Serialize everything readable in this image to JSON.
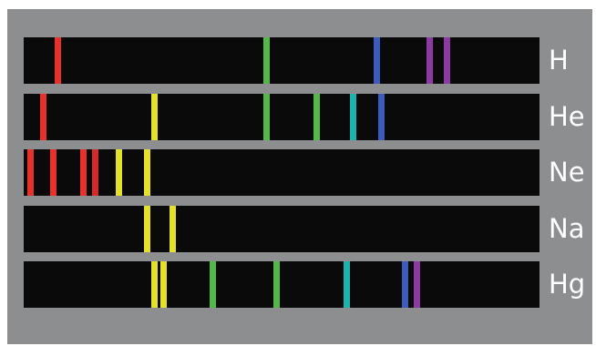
{
  "spectra": [
    {
      "element": "H",
      "lines": [
        {
          "pos": 0.067,
          "color": "#e8312a"
        },
        {
          "pos": 0.47,
          "color": "#54b848"
        },
        {
          "pos": 0.684,
          "color": "#3b5bbf"
        },
        {
          "pos": 0.787,
          "color": "#8e3aa4"
        },
        {
          "pos": 0.82,
          "color": "#8e3aa4"
        }
      ]
    },
    {
      "element": "He",
      "lines": [
        {
          "pos": 0.038,
          "color": "#e8312a"
        },
        {
          "pos": 0.253,
          "color": "#e5e02a"
        },
        {
          "pos": 0.47,
          "color": "#54b848"
        },
        {
          "pos": 0.568,
          "color": "#54b848"
        },
        {
          "pos": 0.638,
          "color": "#1db3b0"
        },
        {
          "pos": 0.693,
          "color": "#3b5bbf"
        }
      ]
    },
    {
      "element": "Ne",
      "lines": [
        {
          "pos": 0.014,
          "color": "#e8312a"
        },
        {
          "pos": 0.058,
          "color": "#e8312a"
        },
        {
          "pos": 0.115,
          "color": "#e8312a"
        },
        {
          "pos": 0.138,
          "color": "#d42a2a"
        },
        {
          "pos": 0.184,
          "color": "#e5e02a"
        },
        {
          "pos": 0.24,
          "color": "#e5e02a"
        }
      ]
    },
    {
      "element": "Na",
      "lines": [
        {
          "pos": 0.24,
          "color": "#e5e02a"
        },
        {
          "pos": 0.288,
          "color": "#e5e02a"
        }
      ]
    },
    {
      "element": "Hg",
      "lines": [
        {
          "pos": 0.253,
          "color": "#e5e02a"
        },
        {
          "pos": 0.272,
          "color": "#e5e02a"
        },
        {
          "pos": 0.367,
          "color": "#54b848"
        },
        {
          "pos": 0.49,
          "color": "#54b848"
        },
        {
          "pos": 0.627,
          "color": "#1db3b0"
        },
        {
          "pos": 0.74,
          "color": "#3b5bbf"
        },
        {
          "pos": 0.762,
          "color": "#8e3aa4"
        }
      ]
    }
  ]
}
